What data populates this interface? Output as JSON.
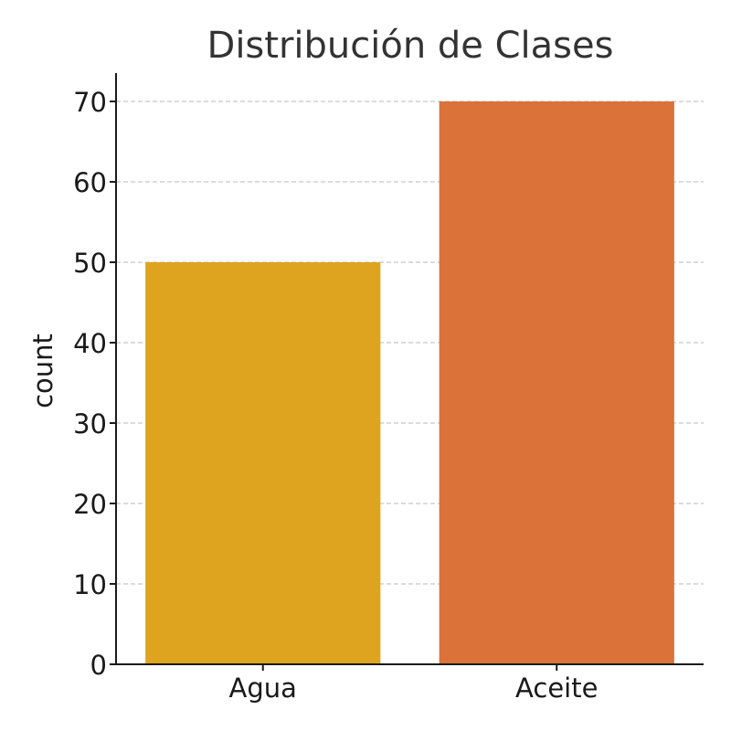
{
  "chart_data": {
    "type": "bar",
    "title": "Distribución de Clases",
    "xlabel": "",
    "ylabel": "count",
    "categories": [
      "Agua",
      "Aceite"
    ],
    "values": [
      50,
      70
    ],
    "colors": [
      "#DFA41F",
      "#DA723A"
    ],
    "ylim": [
      0,
      70
    ],
    "yticks": [
      "0",
      "10",
      "20",
      "30",
      "40",
      "50",
      "60",
      "70"
    ],
    "grid": true,
    "legend": "none"
  }
}
